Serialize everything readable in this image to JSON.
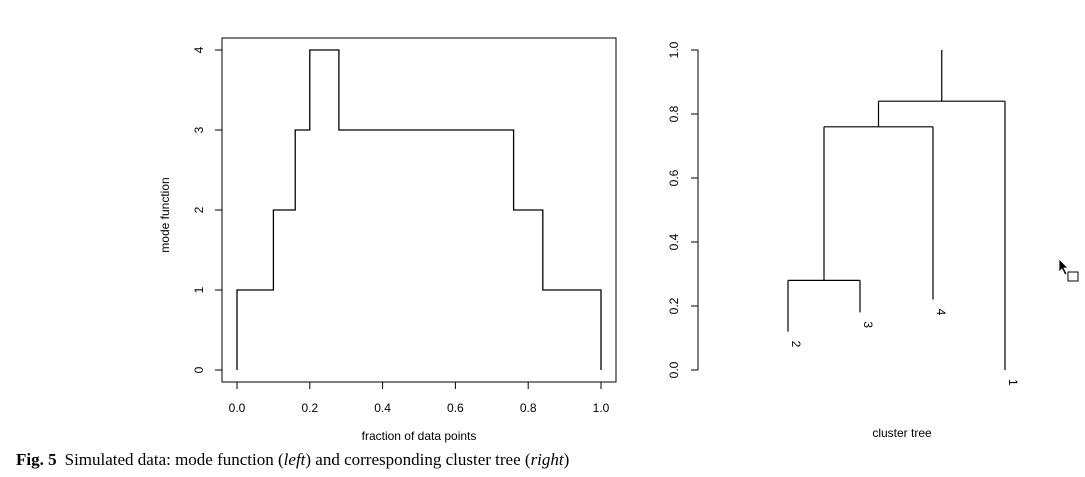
{
  "chart_data": [
    {
      "type": "line",
      "step": true,
      "xlabel": "fraction of data points",
      "ylabel": "mode function",
      "xlim": [
        0.0,
        1.0
      ],
      "ylim": [
        0,
        4
      ],
      "xticks": [
        "0.0",
        "0.2",
        "0.4",
        "0.6",
        "0.8",
        "1.0"
      ],
      "yticks": [
        "0",
        "1",
        "2",
        "3",
        "4"
      ],
      "box": true,
      "x": [
        0.0,
        0.0,
        0.1,
        0.1,
        0.16,
        0.16,
        0.2,
        0.2,
        0.28,
        0.28,
        0.76,
        0.76,
        0.84,
        0.84,
        1.0,
        1.0
      ],
      "y": [
        0,
        1,
        1,
        2,
        2,
        3,
        3,
        4,
        4,
        3,
        3,
        2,
        2,
        1,
        1,
        0
      ]
    },
    {
      "type": "dendrogram",
      "xlabel": "cluster tree",
      "ylim": [
        0.0,
        1.0
      ],
      "yticks": [
        "0.0",
        "0.2",
        "0.4",
        "0.6",
        "0.8",
        "1.0"
      ],
      "leaves": [
        {
          "label": "2",
          "height": 0.12
        },
        {
          "label": "3",
          "height": 0.18
        },
        {
          "label": "4",
          "height": 0.22
        },
        {
          "label": "1",
          "height": 0.0
        }
      ],
      "merges": [
        {
          "members": [
            "2",
            "3"
          ],
          "height": 0.28
        },
        {
          "members": [
            "2",
            "3",
            "4"
          ],
          "height": 0.76
        },
        {
          "members": [
            "2",
            "3",
            "4",
            "1"
          ],
          "height": 0.84
        }
      ],
      "root_height": 1.0
    }
  ],
  "caption": {
    "label": "Fig. 5",
    "text": "Simulated data: mode function (",
    "left": "left",
    "middle": ") and corresponding cluster tree (",
    "right": "right",
    "end": ")"
  }
}
